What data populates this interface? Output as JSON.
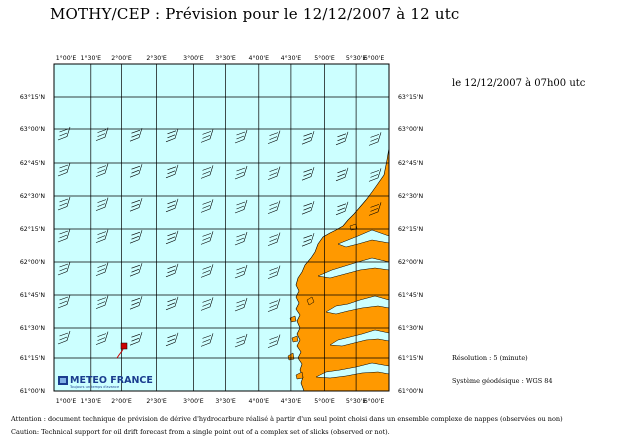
{
  "title": "MOTHY/CEP   : Prévision pour le 12/12/2007 à 12 utc",
  "map": {
    "date_label": "le 12/12/2007 à 07h00 utc",
    "lon_labels_top": [
      "1°00'E",
      "1°30'E",
      "2°00'E",
      "2°30'E",
      "3°00'E",
      "3°30'E",
      "4°00'E",
      "4°30'E",
      "5°00'E",
      "5°30'E",
      "6°00'E"
    ],
    "lon_labels_bottom": [
      "1°00'E",
      "1°30'E",
      "2°00'E",
      "2°30'E",
      "3°00'E",
      "3°30'E",
      "4°00'E",
      "4°30'E",
      "5°00'E",
      "5°30'E",
      "6°00'E"
    ],
    "lat_labels_left": [
      "63°15'N",
      "63°00'N",
      "62°45'N",
      "62°30'N",
      "62°15'N",
      "62°00'N",
      "61°45'N",
      "61°30'N",
      "61°15'N",
      "61°00'N"
    ],
    "lat_labels_right": [
      "63°15'N",
      "63°00'N",
      "62°45'N",
      "62°30'N",
      "62°15'N",
      "62°00'N",
      "61°45'N",
      "61°30'N",
      "61°15'N",
      "61°00'N"
    ],
    "ocean_color": "#ccffff",
    "land_color": "#ff9900",
    "drift_color": "#cc0000",
    "logo": {
      "name": "METEO FRANCE",
      "tagline": "Toujours un temps d'avance",
      "icon": "meteo-france-logo"
    }
  },
  "info": {
    "resolution": "Résolution : 5 (minute)",
    "geodesic": "Système géodésique : WGS 84"
  },
  "footer": {
    "attention": "Attention : document technique de prévision de dérive d'hydrocarbure réalisé à partir d'un seul point choisi dans un ensemble complexe de nappes (observées ou non)",
    "caution": "Caution: Technical support for oil drift forecast from a single point out of a complex set of slicks (observed or not)."
  }
}
